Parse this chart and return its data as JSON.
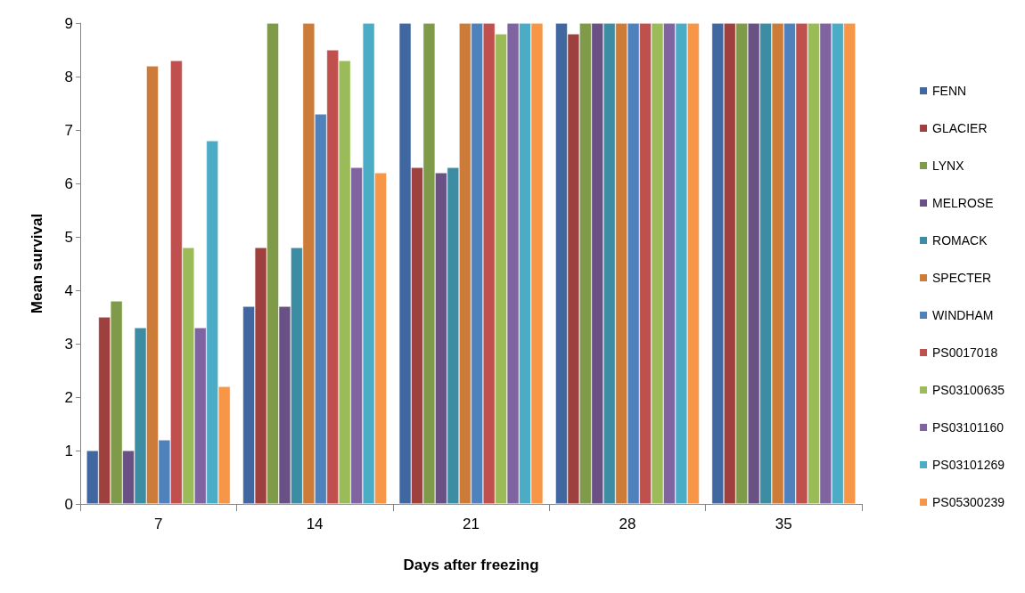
{
  "chart_data": {
    "type": "bar",
    "xlabel": "Days after freezing",
    "ylabel": "Mean survival",
    "categories": [
      "7",
      "14",
      "21",
      "28",
      "35"
    ],
    "ylim": [
      0,
      9
    ],
    "yticks": [
      0,
      1,
      2,
      3,
      4,
      5,
      6,
      7,
      8,
      9
    ],
    "grid": false,
    "legend": "right",
    "series": [
      {
        "name": "FENN",
        "color": "#4067a0",
        "values": [
          1,
          3.7,
          9,
          9,
          9
        ]
      },
      {
        "name": "GLACIER",
        "color": "#9e413e",
        "values": [
          3.5,
          4.8,
          6.3,
          8.8,
          9
        ]
      },
      {
        "name": "LYNX",
        "color": "#7f9a48",
        "values": [
          3.8,
          9,
          9,
          9,
          9
        ]
      },
      {
        "name": "MELROSE",
        "color": "#695185",
        "values": [
          1,
          3.7,
          6.2,
          9,
          9
        ]
      },
      {
        "name": "ROMACK",
        "color": "#3c8da3",
        "values": [
          3.3,
          4.8,
          6.3,
          9,
          9
        ]
      },
      {
        "name": "SPECTER",
        "color": "#cc7b38",
        "values": [
          8.2,
          9,
          9,
          9,
          9
        ]
      },
      {
        "name": "WINDHAM",
        "color": "#4f81bd",
        "values": [
          1.2,
          7.3,
          9,
          9,
          9
        ]
      },
      {
        "name": "PS0017018",
        "color": "#c0504d",
        "values": [
          8.3,
          8.5,
          9,
          9,
          9
        ]
      },
      {
        "name": "PS03100635",
        "color": "#9bbb59",
        "values": [
          4.8,
          8.3,
          8.8,
          9,
          9
        ]
      },
      {
        "name": "PS03101160",
        "color": "#8064a2",
        "values": [
          3.3,
          6.3,
          9,
          9,
          9
        ]
      },
      {
        "name": "PS03101269",
        "color": "#4bacc6",
        "values": [
          6.8,
          9,
          9,
          9,
          9
        ]
      },
      {
        "name": "PS05300239",
        "color": "#f79646",
        "values": [
          2.2,
          6.2,
          9,
          9,
          9
        ]
      }
    ]
  }
}
